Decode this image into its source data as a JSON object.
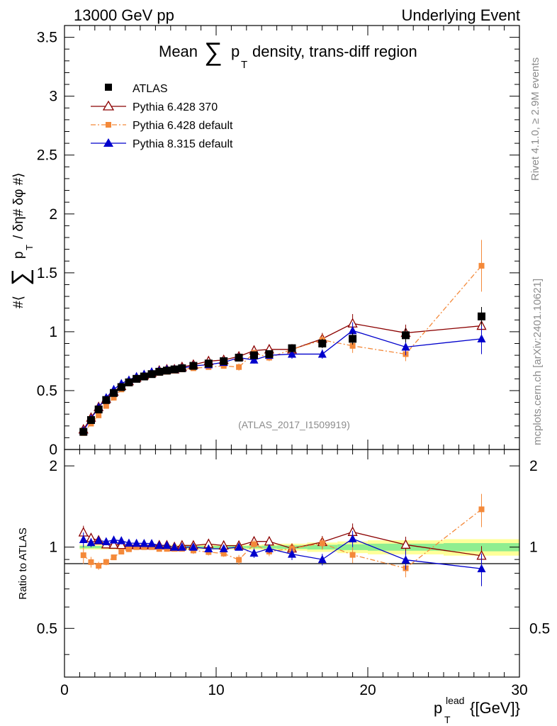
{
  "header": {
    "left": "13000 GeV pp",
    "right": "Underlying Event"
  },
  "side_text": {
    "rivet": "Rivet 4.1.0, ≥ 2.9M events",
    "mcplots": "mcplots.cern.ch [arXiv:2401.10621]"
  },
  "chart_data": {
    "type": "scatter",
    "title": "Mean ∑ p_T density, trans-diff region",
    "title_parts": {
      "pre": "Mean",
      "sum": "∑",
      "p": "p",
      "sub": "T",
      "post": "density, trans-diff region"
    },
    "analysis_id": "(ATLAS_2017_I1509919)",
    "xlabel": "p_T^lead {[GeV]}",
    "xlabel_parts": {
      "p": "p",
      "sub": "T",
      "sup": "lead",
      "unit": "{[GeV]}"
    },
    "ylabel": "#⟨ ∑ p_T / δη# δφ #⟩",
    "ylabel_parts": {
      "pre": "#⟨",
      "sum": "∑",
      "p": "p",
      "sub": "T",
      "post": "/ δη# δφ #⟩"
    },
    "ratio_ylabel": "Ratio to ATLAS",
    "xlim": [
      0,
      30
    ],
    "ylim": [
      0,
      3.6
    ],
    "ratio_ylim": [
      0.33,
      2.3
    ],
    "x_ticks": [
      "0",
      "10",
      "20",
      "30"
    ],
    "y_ticks": [
      "0",
      "0.5",
      "1",
      "1.5",
      "2",
      "2.5",
      "3",
      "3.5"
    ],
    "ratio_ticks": [
      "0.5",
      "1",
      "2"
    ],
    "legend_position": "top-left",
    "x": [
      1.25,
      1.75,
      2.25,
      2.75,
      3.25,
      3.75,
      4.25,
      4.75,
      5.25,
      5.75,
      6.25,
      6.75,
      7.25,
      7.75,
      8.5,
      9.5,
      10.5,
      11.5,
      12.5,
      13.5,
      15,
      17,
      19,
      22.5,
      27.5
    ],
    "series": [
      {
        "name": "ATLAS",
        "color": "#000000",
        "marker": "square",
        "values": [
          0.15,
          0.25,
          0.34,
          0.42,
          0.48,
          0.53,
          0.57,
          0.6,
          0.62,
          0.64,
          0.66,
          0.67,
          0.68,
          0.69,
          0.71,
          0.73,
          0.75,
          0.78,
          0.8,
          0.81,
          0.86,
          0.9,
          0.94,
          0.97,
          1.13
        ],
        "errors": [
          0.01,
          0.01,
          0.01,
          0.01,
          0.01,
          0.01,
          0.01,
          0.01,
          0.01,
          0.01,
          0.01,
          0.01,
          0.01,
          0.01,
          0.01,
          0.02,
          0.02,
          0.02,
          0.02,
          0.03,
          0.03,
          0.04,
          0.05,
          0.06,
          0.08
        ]
      },
      {
        "name": "Pythia 6.428 370",
        "color": "#8b0000",
        "marker": "triangle-open",
        "line": "solid",
        "values": [
          0.17,
          0.27,
          0.36,
          0.43,
          0.49,
          0.54,
          0.58,
          0.61,
          0.63,
          0.65,
          0.67,
          0.68,
          0.68,
          0.7,
          0.72,
          0.75,
          0.76,
          0.79,
          0.84,
          0.85,
          0.85,
          0.94,
          1.07,
          0.99,
          1.05
        ],
        "errors": [
          0.01,
          0.01,
          0.01,
          0.01,
          0.01,
          0.01,
          0.01,
          0.01,
          0.01,
          0.01,
          0.01,
          0.01,
          0.01,
          0.01,
          0.02,
          0.02,
          0.02,
          0.02,
          0.03,
          0.03,
          0.04,
          0.05,
          0.08,
          0.07,
          0.09
        ]
      },
      {
        "name": "Pythia 6.428 default",
        "color": "#f4893a",
        "marker": "square-small",
        "line": "dashdot",
        "values": [
          0.14,
          0.22,
          0.29,
          0.37,
          0.44,
          0.51,
          0.56,
          0.6,
          0.62,
          0.64,
          0.65,
          0.66,
          0.67,
          0.68,
          0.69,
          0.7,
          0.71,
          0.7,
          0.82,
          0.78,
          0.85,
          0.93,
          0.88,
          0.81,
          1.56
        ],
        "errors": [
          0.01,
          0.01,
          0.01,
          0.01,
          0.01,
          0.01,
          0.01,
          0.01,
          0.01,
          0.01,
          0.01,
          0.01,
          0.01,
          0.01,
          0.02,
          0.02,
          0.02,
          0.03,
          0.03,
          0.03,
          0.04,
          0.05,
          0.06,
          0.06,
          0.22
        ]
      },
      {
        "name": "Pythia 8.315 default",
        "color": "#0000cc",
        "marker": "triangle",
        "line": "solid",
        "values": [
          0.16,
          0.26,
          0.36,
          0.44,
          0.51,
          0.56,
          0.59,
          0.62,
          0.64,
          0.66,
          0.67,
          0.68,
          0.68,
          0.69,
          0.71,
          0.72,
          0.74,
          0.78,
          0.76,
          0.8,
          0.81,
          0.81,
          1.01,
          0.87,
          0.94
        ],
        "errors": [
          0.01,
          0.01,
          0.01,
          0.01,
          0.01,
          0.01,
          0.01,
          0.01,
          0.01,
          0.01,
          0.01,
          0.01,
          0.01,
          0.01,
          0.02,
          0.02,
          0.02,
          0.02,
          0.03,
          0.03,
          0.04,
          0.04,
          0.07,
          0.07,
          0.13
        ]
      }
    ],
    "ratio_band": {
      "stat_color": "#90ee90",
      "total_color": "#ffff99",
      "x": [
        1,
        1.5,
        2,
        2.5,
        3,
        3.5,
        4,
        4.5,
        5,
        5.5,
        6,
        6.5,
        7,
        7.5,
        8,
        9,
        10,
        11,
        12,
        13,
        14,
        16,
        18,
        20,
        25,
        30
      ],
      "stat_half": [
        0.01,
        0.01,
        0.01,
        0.01,
        0.01,
        0.01,
        0.01,
        0.01,
        0.01,
        0.01,
        0.01,
        0.01,
        0.01,
        0.01,
        0.01,
        0.01,
        0.01,
        0.01,
        0.01,
        0.012,
        0.015,
        0.02,
        0.025,
        0.03,
        0.035
      ],
      "total_half": [
        0.02,
        0.02,
        0.02,
        0.02,
        0.02,
        0.02,
        0.02,
        0.02,
        0.02,
        0.02,
        0.02,
        0.02,
        0.02,
        0.02,
        0.02,
        0.02,
        0.02,
        0.02,
        0.02,
        0.025,
        0.03,
        0.04,
        0.05,
        0.06,
        0.07
      ]
    }
  }
}
